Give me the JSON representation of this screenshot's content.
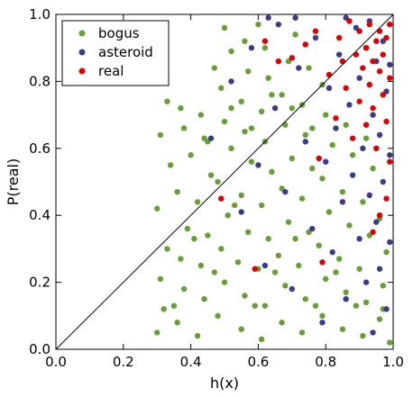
{
  "chart_data": {
    "type": "scatter",
    "xlabel": "h(x)",
    "ylabel": "P(real)",
    "xlim": [
      0.0,
      1.0
    ],
    "ylim": [
      0.0,
      1.0
    ],
    "x_ticks": [
      "0.0",
      "0.2",
      "0.4",
      "0.6",
      "0.8",
      "1.0"
    ],
    "y_ticks": [
      "0.0",
      "0.2",
      "0.4",
      "0.6",
      "0.8",
      "1.0"
    ],
    "grid": false,
    "legend_position": "top-left",
    "reference_line": {
      "from": [
        0.0,
        0.0
      ],
      "to": [
        1.0,
        1.0
      ],
      "color": "#000000"
    },
    "series": [
      {
        "name": "bogus",
        "color": "#66a033",
        "points": [
          [
            0.3,
            0.05
          ],
          [
            0.32,
            0.12
          ],
          [
            0.31,
            0.21
          ],
          [
            0.33,
            0.3
          ],
          [
            0.3,
            0.42
          ],
          [
            0.34,
            0.55
          ],
          [
            0.31,
            0.64
          ],
          [
            0.33,
            0.74
          ],
          [
            0.36,
            0.08
          ],
          [
            0.38,
            0.18
          ],
          [
            0.37,
            0.27
          ],
          [
            0.39,
            0.36
          ],
          [
            0.36,
            0.47
          ],
          [
            0.4,
            0.58
          ],
          [
            0.38,
            0.66
          ],
          [
            0.37,
            0.72
          ],
          [
            0.42,
            0.04
          ],
          [
            0.44,
            0.15
          ],
          [
            0.43,
            0.25
          ],
          [
            0.45,
            0.34
          ],
          [
            0.42,
            0.44
          ],
          [
            0.46,
            0.52
          ],
          [
            0.44,
            0.63
          ],
          [
            0.43,
            0.7
          ],
          [
            0.48,
            0.1
          ],
          [
            0.5,
            0.2
          ],
          [
            0.49,
            0.3
          ],
          [
            0.51,
            0.4
          ],
          [
            0.48,
            0.5
          ],
          [
            0.52,
            0.6
          ],
          [
            0.5,
            0.68
          ],
          [
            0.49,
            0.78
          ],
          [
            0.47,
            0.84
          ],
          [
            0.52,
            0.89
          ],
          [
            0.5,
            0.96
          ],
          [
            0.55,
            0.06
          ],
          [
            0.56,
            0.16
          ],
          [
            0.54,
            0.26
          ],
          [
            0.57,
            0.35
          ],
          [
            0.55,
            0.46
          ],
          [
            0.58,
            0.56
          ],
          [
            0.56,
            0.65
          ],
          [
            0.55,
            0.74
          ],
          [
            0.57,
            0.83
          ],
          [
            0.56,
            0.92
          ],
          [
            0.61,
            0.03
          ],
          [
            0.62,
            0.13
          ],
          [
            0.6,
            0.24
          ],
          [
            0.63,
            0.33
          ],
          [
            0.61,
            0.43
          ],
          [
            0.64,
            0.53
          ],
          [
            0.62,
            0.62
          ],
          [
            0.61,
            0.71
          ],
          [
            0.63,
            0.81
          ],
          [
            0.62,
            0.9
          ],
          [
            0.6,
            0.97
          ],
          [
            0.67,
            0.08
          ],
          [
            0.68,
            0.19
          ],
          [
            0.66,
            0.28
          ],
          [
            0.69,
            0.38
          ],
          [
            0.67,
            0.48
          ],
          [
            0.7,
            0.57
          ],
          [
            0.68,
            0.67
          ],
          [
            0.67,
            0.76
          ],
          [
            0.69,
            0.86
          ],
          [
            0.71,
            0.94
          ],
          [
            0.73,
            0.05
          ],
          [
            0.74,
            0.15
          ],
          [
            0.72,
            0.25
          ],
          [
            0.75,
            0.35
          ],
          [
            0.73,
            0.45
          ],
          [
            0.76,
            0.54
          ],
          [
            0.74,
            0.64
          ],
          [
            0.73,
            0.73
          ],
          [
            0.75,
            0.84
          ],
          [
            0.74,
            0.91
          ],
          [
            0.79,
            0.1
          ],
          [
            0.8,
            0.21
          ],
          [
            0.78,
            0.31
          ],
          [
            0.81,
            0.41
          ],
          [
            0.79,
            0.51
          ],
          [
            0.82,
            0.61
          ],
          [
            0.8,
            0.7
          ],
          [
            0.79,
            0.79
          ],
          [
            0.85,
            0.06
          ],
          [
            0.86,
            0.17
          ],
          [
            0.84,
            0.27
          ],
          [
            0.87,
            0.37
          ],
          [
            0.85,
            0.47
          ],
          [
            0.88,
            0.58
          ],
          [
            0.86,
            0.67
          ],
          [
            0.91,
            0.04
          ],
          [
            0.92,
            0.14
          ],
          [
            0.9,
            0.24
          ],
          [
            0.93,
            0.34
          ],
          [
            0.91,
            0.44
          ],
          [
            0.94,
            0.54
          ],
          [
            0.92,
            0.63
          ],
          [
            0.96,
            0.09
          ],
          [
            0.97,
            0.19
          ],
          [
            0.98,
            0.29
          ],
          [
            0.96,
            0.39
          ],
          [
            0.99,
            0.02
          ],
          [
            0.97,
            0.12
          ],
          [
            0.35,
            0.13
          ],
          [
            0.41,
            0.33
          ],
          [
            0.47,
            0.23
          ],
          [
            0.53,
            0.43
          ],
          [
            0.59,
            0.13
          ],
          [
            0.65,
            0.23
          ],
          [
            0.71,
            0.33
          ],
          [
            0.77,
            0.13
          ],
          [
            0.83,
            0.23
          ],
          [
            0.89,
            0.13
          ],
          [
            0.45,
            0.62
          ],
          [
            0.52,
            0.72
          ],
          [
            0.58,
            0.66
          ],
          [
            0.64,
            0.76
          ],
          [
            0.7,
            0.72
          ],
          [
            0.76,
            0.66
          ]
        ]
      },
      {
        "name": "asteroid",
        "color": "#3b3b8c",
        "points": [
          [
            0.46,
            0.63
          ],
          [
            0.52,
            0.8
          ],
          [
            0.55,
            0.41
          ],
          [
            0.58,
            0.9
          ],
          [
            0.6,
            0.55
          ],
          [
            0.62,
            0.25
          ],
          [
            0.65,
            0.72
          ],
          [
            0.66,
            0.97
          ],
          [
            0.68,
            0.47
          ],
          [
            0.7,
            0.18
          ],
          [
            0.72,
            0.84
          ],
          [
            0.74,
            0.62
          ],
          [
            0.76,
            0.36
          ],
          [
            0.77,
            0.93
          ],
          [
            0.79,
            0.08
          ],
          [
            0.8,
            0.56
          ],
          [
            0.81,
            0.78
          ],
          [
            0.82,
            0.29
          ],
          [
            0.83,
            0.66
          ],
          [
            0.84,
            0.88
          ],
          [
            0.85,
            0.44
          ],
          [
            0.86,
            0.15
          ],
          [
            0.87,
            0.73
          ],
          [
            0.88,
            0.52
          ],
          [
            0.89,
            0.96
          ],
          [
            0.9,
            0.33
          ],
          [
            0.9,
            0.81
          ],
          [
            0.91,
            0.6
          ],
          [
            0.92,
            0.2
          ],
          [
            0.92,
            0.9
          ],
          [
            0.93,
            0.46
          ],
          [
            0.94,
            0.7
          ],
          [
            0.94,
            0.05
          ],
          [
            0.95,
            0.86
          ],
          [
            0.95,
            0.38
          ],
          [
            0.96,
            0.64
          ],
          [
            0.96,
            0.24
          ],
          [
            0.97,
            0.92
          ],
          [
            0.97,
            0.5
          ],
          [
            0.98,
            0.77
          ],
          [
            0.98,
            0.12
          ],
          [
            0.99,
            0.58
          ],
          [
            0.99,
            0.32
          ],
          [
            0.99,
            0.85
          ],
          [
            0.93,
            0.98
          ],
          [
            0.86,
            0.99
          ],
          [
            0.63,
            0.99
          ],
          [
            0.71,
            0.99
          ]
        ]
      },
      {
        "name": "real",
        "color": "#e00000",
        "points": [
          [
            0.49,
            0.45
          ],
          [
            0.59,
            0.24
          ],
          [
            0.62,
            0.92
          ],
          [
            0.66,
            0.86
          ],
          [
            0.7,
            0.87
          ],
          [
            0.74,
            0.91
          ],
          [
            0.77,
            0.95
          ],
          [
            0.78,
            0.57
          ],
          [
            0.79,
            0.26
          ],
          [
            0.81,
            0.82
          ],
          [
            0.83,
            0.69
          ],
          [
            0.84,
            0.93
          ],
          [
            0.85,
            0.86
          ],
          [
            0.86,
            0.78
          ],
          [
            0.87,
            0.98
          ],
          [
            0.88,
            0.63
          ],
          [
            0.89,
            0.88
          ],
          [
            0.9,
            0.74
          ],
          [
            0.9,
            0.95
          ],
          [
            0.91,
            0.84
          ],
          [
            0.92,
            0.67
          ],
          [
            0.92,
            0.9
          ],
          [
            0.93,
            0.79
          ],
          [
            0.93,
            0.97
          ],
          [
            0.94,
            0.86
          ],
          [
            0.94,
            0.72
          ],
          [
            0.95,
            0.92
          ],
          [
            0.95,
            0.6
          ],
          [
            0.96,
            0.83
          ],
          [
            0.96,
            0.95
          ],
          [
            0.97,
            0.76
          ],
          [
            0.97,
            0.88
          ],
          [
            0.98,
            0.93
          ],
          [
            0.98,
            0.68
          ],
          [
            0.99,
            0.81
          ],
          [
            0.99,
            0.97
          ],
          [
            0.99,
            0.56
          ],
          [
            0.98,
            0.45
          ],
          [
            0.96,
            0.4
          ],
          [
            0.94,
            0.35
          ]
        ]
      }
    ]
  }
}
